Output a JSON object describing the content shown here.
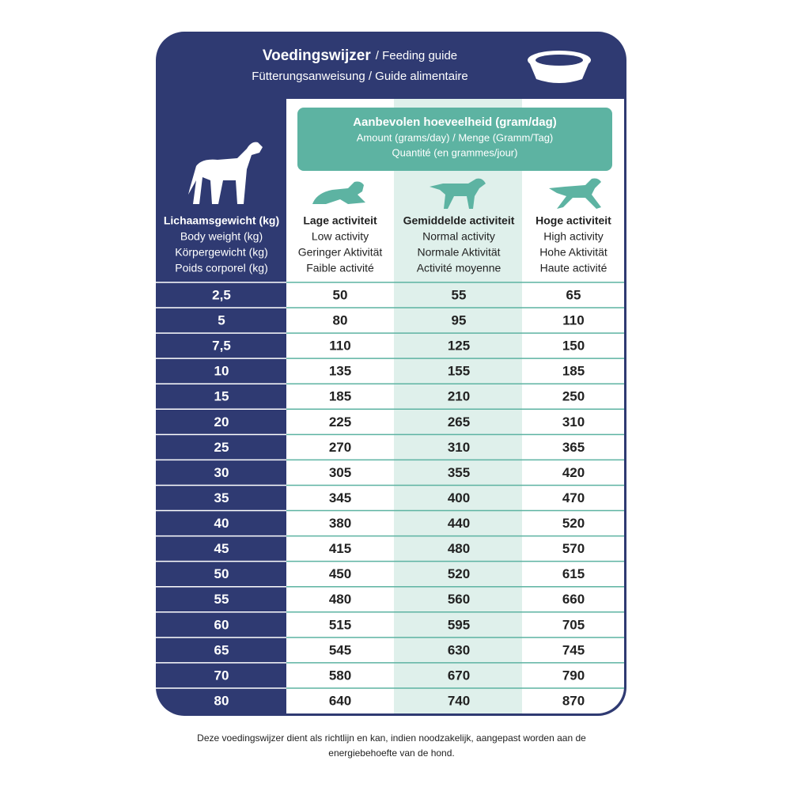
{
  "header": {
    "title": "Voedingswijzer",
    "title_en": "/ Feeding guide",
    "subtitle": "Fütterungsanweisung / Guide alimentaire"
  },
  "amount_box": {
    "title": "Aanbevolen hoeveelheid (gram/dag)",
    "line2": "Amount (grams/day) / Menge (Gramm/Tag)",
    "line3": "Quantité (en grammes/jour)"
  },
  "table": {
    "columns": [
      [
        "Lichaamsgewicht (kg)",
        "Body weight (kg)",
        "Körpergewicht (kg)",
        "Poids corporel (kg)"
      ],
      [
        "Lage activiteit",
        "Low activity",
        "Geringer Aktivität",
        "Faible activité"
      ],
      [
        "Gemiddelde activiteit",
        "Normal activity",
        "Normale Aktivität",
        "Activité moyenne"
      ],
      [
        "Hoge activiteit",
        "High activity",
        "Hohe Aktivität",
        "Haute activité"
      ]
    ],
    "rows": [
      [
        "2,5",
        "50",
        "55",
        "65"
      ],
      [
        "5",
        "80",
        "95",
        "110"
      ],
      [
        "7,5",
        "110",
        "125",
        "150"
      ],
      [
        "10",
        "135",
        "155",
        "185"
      ],
      [
        "15",
        "185",
        "210",
        "250"
      ],
      [
        "20",
        "225",
        "265",
        "310"
      ],
      [
        "25",
        "270",
        "310",
        "365"
      ],
      [
        "30",
        "305",
        "355",
        "420"
      ],
      [
        "35",
        "345",
        "400",
        "470"
      ],
      [
        "40",
        "380",
        "440",
        "520"
      ],
      [
        "45",
        "415",
        "480",
        "570"
      ],
      [
        "50",
        "450",
        "520",
        "615"
      ],
      [
        "55",
        "480",
        "560",
        "660"
      ],
      [
        "60",
        "515",
        "595",
        "705"
      ],
      [
        "65",
        "545",
        "630",
        "745"
      ],
      [
        "70",
        "580",
        "670",
        "790"
      ],
      [
        "80",
        "640",
        "740",
        "870"
      ]
    ]
  },
  "footer": [
    "Deze voedingswijzer dient als richtlijn en kan, indien noodzakelijk, aangepast worden aan de",
    "energiebehoefte van de hond."
  ]
}
